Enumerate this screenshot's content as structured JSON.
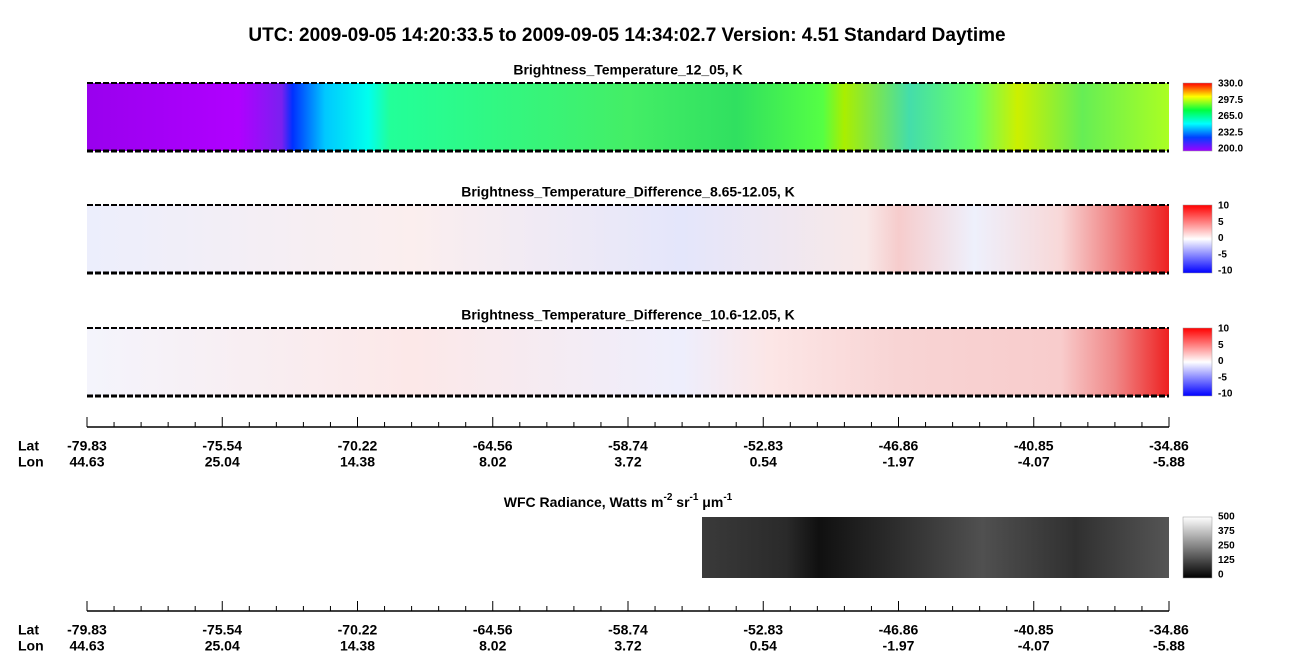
{
  "header": {
    "title": "UTC:  2009-09-05   14:20:33.5  to  2009-09-05   14:34:02.7    Version: 4.51  Standard Daytime"
  },
  "panels": [
    {
      "title": "Brightness_Temperature_12_05, K",
      "colorbar_labels": [
        "330.0",
        "297.5",
        "265.0",
        "232.5",
        "200.0"
      ]
    },
    {
      "title": "Brightness_Temperature_Difference_8.65-12.05, K",
      "colorbar_labels": [
        "10",
        "5",
        "0",
        "-5",
        "-10"
      ]
    },
    {
      "title": "Brightness_Temperature_Difference_10.6-12.05, K",
      "colorbar_labels": [
        "10",
        "5",
        "0",
        "-5",
        "-10"
      ]
    }
  ],
  "axes": [
    {
      "lat_label": "Lat",
      "lon_label": "Lon",
      "lat": [
        "-79.83",
        "-75.54",
        "-70.22",
        "-64.56",
        "-58.74",
        "-52.83",
        "-46.86",
        "-40.85",
        "-34.86"
      ],
      "lon": [
        "44.63",
        "25.04",
        "14.38",
        "8.02",
        "3.72",
        "0.54",
        "-1.97",
        "-4.07",
        "-5.88"
      ]
    },
    {
      "lat_label": "Lat",
      "lon_label": "Lon",
      "lat": [
        "-79.83",
        "-75.54",
        "-70.22",
        "-64.56",
        "-58.74",
        "-52.83",
        "-46.86",
        "-40.85",
        "-34.86"
      ],
      "lon": [
        "44.63",
        "25.04",
        "14.38",
        "8.02",
        "3.72",
        "0.54",
        "-1.97",
        "-4.07",
        "-5.88"
      ]
    }
  ],
  "wfc": {
    "title_parts": [
      "WFC Radiance, Watts m",
      "-2",
      " sr",
      "-1",
      " μm",
      "-1"
    ],
    "colorbar_labels": [
      "500",
      "375",
      "250",
      "125",
      "0"
    ]
  }
}
